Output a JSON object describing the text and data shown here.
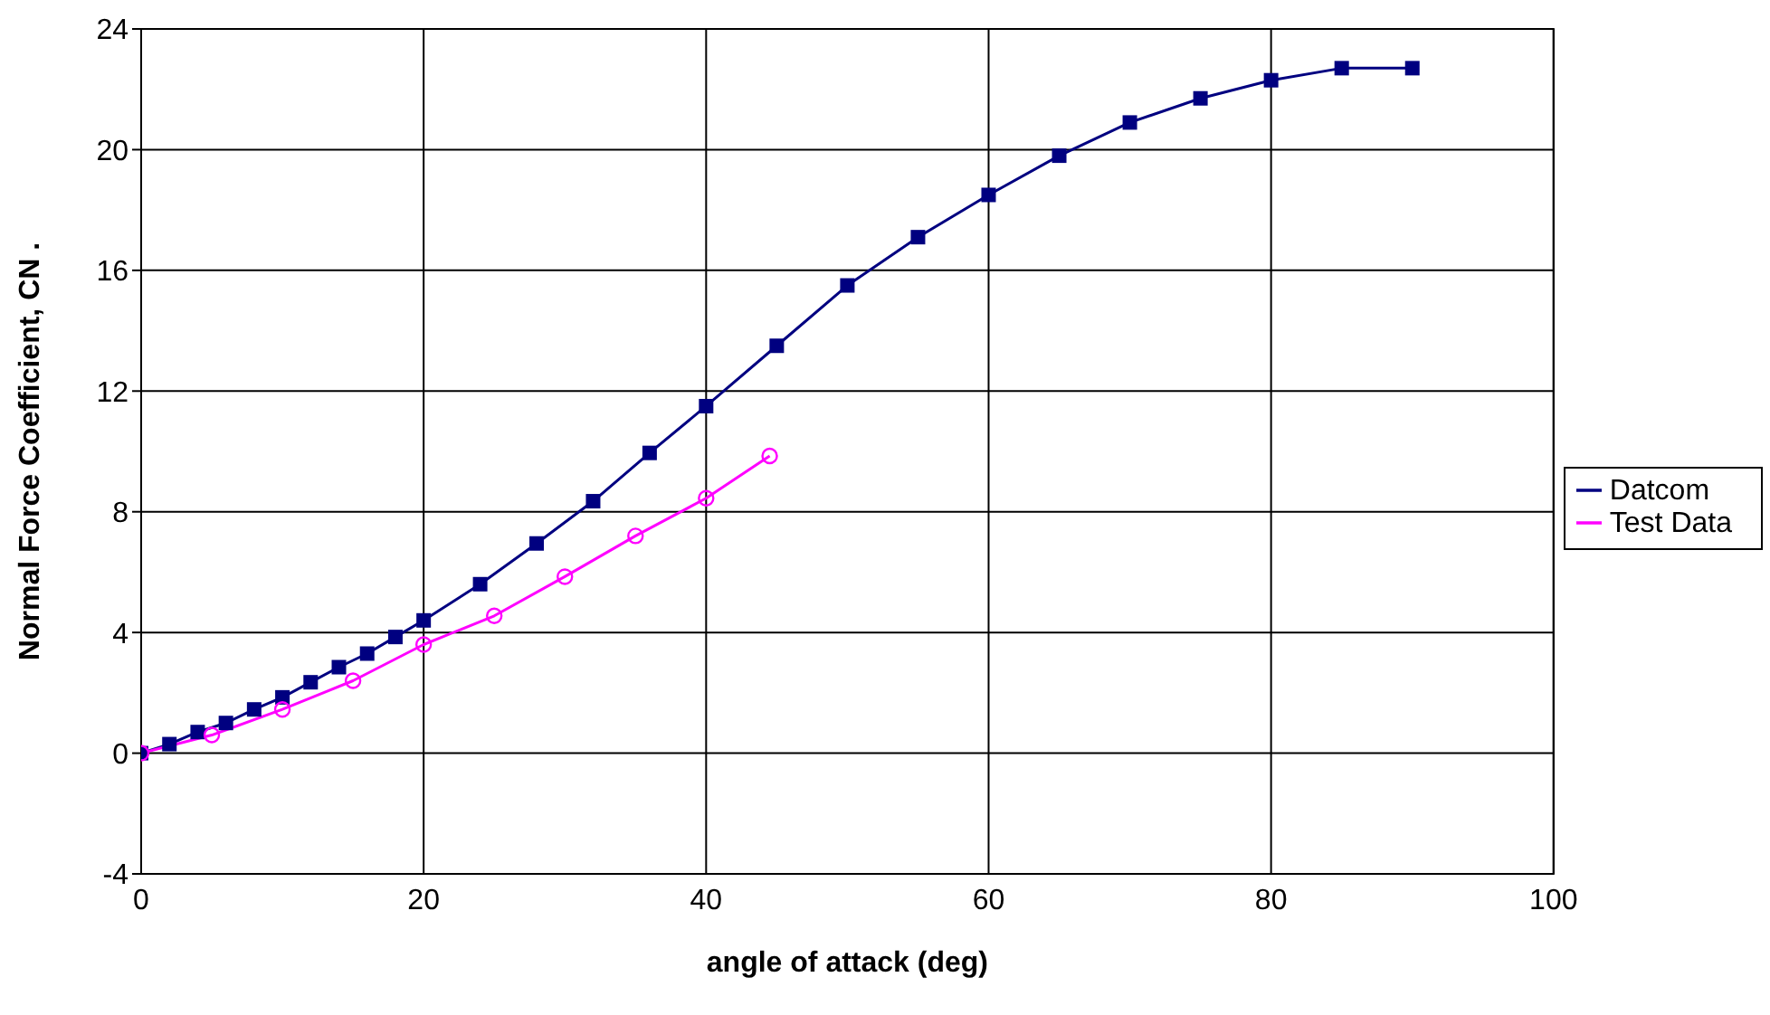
{
  "chart_data": {
    "type": "line",
    "xlabel": "angle of attack (deg)",
    "ylabel": "Normal Force Coefficient, CN .",
    "xlim": [
      0,
      100
    ],
    "xticks": [
      0,
      20,
      40,
      60,
      80,
      100
    ],
    "ylim": [
      -4,
      24
    ],
    "yticks": [
      -4,
      0,
      4,
      8,
      12,
      16,
      20,
      24
    ],
    "grid": true,
    "legend": "right",
    "series": [
      {
        "name": "Datcom",
        "color": "#000080",
        "marker": "square",
        "x": [
          0,
          2,
          4,
          6,
          8,
          10,
          12,
          14,
          16,
          18,
          20,
          24,
          28,
          32,
          36,
          40,
          45,
          50,
          55,
          60,
          65,
          70,
          75,
          80,
          85,
          90
        ],
        "values": [
          0,
          0.3,
          0.7,
          1.0,
          1.45,
          1.85,
          2.35,
          2.85,
          3.3,
          3.85,
          4.4,
          5.6,
          6.95,
          8.35,
          9.95,
          11.5,
          13.5,
          15.5,
          17.1,
          18.5,
          19.8,
          20.9,
          21.7,
          22.3,
          22.7,
          22.7
        ]
      },
      {
        "name": "Test Data",
        "color": "#ff00ff",
        "marker": "circle",
        "x": [
          0,
          5,
          10,
          15,
          20,
          25,
          30,
          35,
          40,
          44.5
        ],
        "values": [
          0,
          0.6,
          1.45,
          2.4,
          3.6,
          4.55,
          5.85,
          7.2,
          8.45,
          9.85
        ]
      }
    ]
  }
}
